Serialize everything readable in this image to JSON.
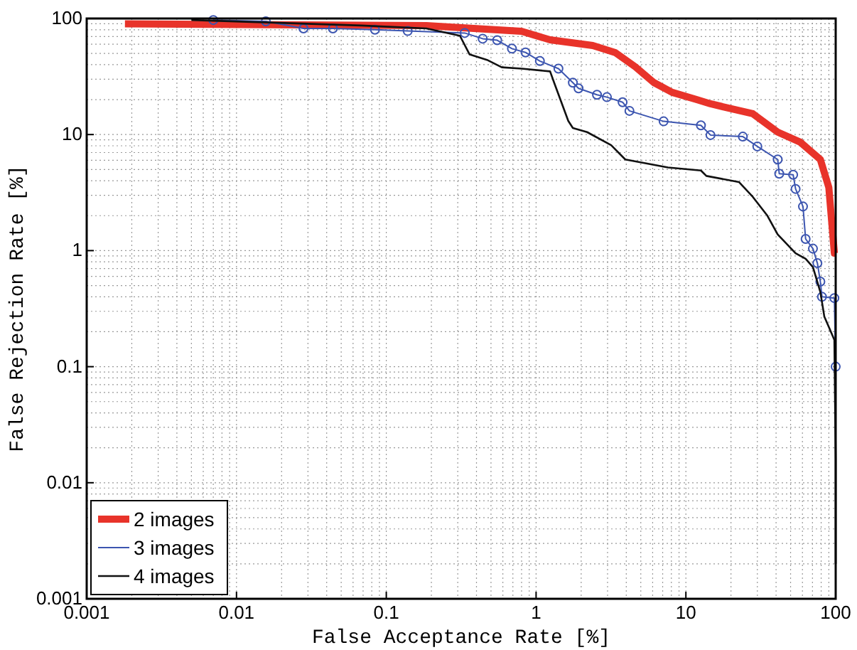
{
  "chart_data": {
    "type": "line",
    "xlabel": "False Acceptance Rate [%]",
    "ylabel": "False Rejection Rate [%]",
    "log": "xy",
    "grid": true,
    "legend": "bottom left",
    "line_style": "solid",
    "xlim": [
      0.001,
      100
    ],
    "ylim": [
      0.001,
      100
    ],
    "xticks": [
      0.001,
      0.01,
      0.1,
      1,
      10,
      100
    ],
    "yticks": [
      0.001,
      0.01,
      0.1,
      1,
      10,
      100
    ],
    "series": [
      {
        "name": "2 images",
        "color": "#e8332a",
        "marker": "none",
        "x": [
          0.0018,
          0.185,
          0.8,
          1.24,
          2.39,
          3.38,
          4.6,
          6.1,
          8.1,
          11.8,
          14.6,
          28,
          41,
          58,
          79,
          90,
          98,
          100
        ],
        "values": [
          90,
          86.9,
          77.6,
          65.5,
          58.5,
          50.8,
          38.3,
          28.1,
          23.1,
          20,
          18.4,
          15.1,
          10.5,
          8.6,
          6.1,
          3.5,
          0.95,
          0.95
        ]
      },
      {
        "name": "3 images",
        "color": "#3c55b0",
        "marker": "circle",
        "x": [
          0.007,
          0.0157,
          0.028,
          0.044,
          0.084,
          0.139,
          0.334,
          0.44,
          0.55,
          0.69,
          0.85,
          1.06,
          1.41,
          1.76,
          1.92,
          2.55,
          2.97,
          3.78,
          4.2,
          7.1,
          12.6,
          14.6,
          24,
          30,
          41,
          42,
          52,
          54,
          60.5,
          63,
          70.5,
          75.5,
          79,
          81,
          98,
          100
        ],
        "values": [
          97,
          94.5,
          82,
          82,
          80,
          78,
          75,
          67,
          65,
          55,
          51,
          43,
          37,
          28,
          25,
          22,
          21,
          19,
          16,
          13,
          12,
          9.9,
          9.6,
          7.9,
          6.1,
          4.6,
          4.5,
          3.4,
          2.4,
          1.26,
          1.04,
          0.78,
          0.54,
          0.4,
          0.39,
          0.1
        ]
      },
      {
        "name": "4 images",
        "color": "#111111",
        "marker": "none",
        "x": [
          0.005,
          0.068,
          0.185,
          0.31,
          0.36,
          0.47,
          0.59,
          0.8,
          1.24,
          1.32,
          1.64,
          1.76,
          2.19,
          3.17,
          3.94,
          5.2,
          7.6,
          12.6,
          13.7,
          22.6,
          28,
          35,
          41,
          54,
          63,
          70.5,
          79,
          84,
          90,
          98,
          100,
          100
        ],
        "values": [
          97,
          87,
          82,
          71,
          49,
          44,
          38,
          37,
          35,
          28,
          13.1,
          11.4,
          10.5,
          8.1,
          6.1,
          5.7,
          5.2,
          4.9,
          4.4,
          3.9,
          2.9,
          2,
          1.38,
          0.95,
          0.85,
          0.72,
          0.44,
          0.27,
          0.22,
          0.17,
          0.016,
          0.002
        ]
      }
    ]
  }
}
